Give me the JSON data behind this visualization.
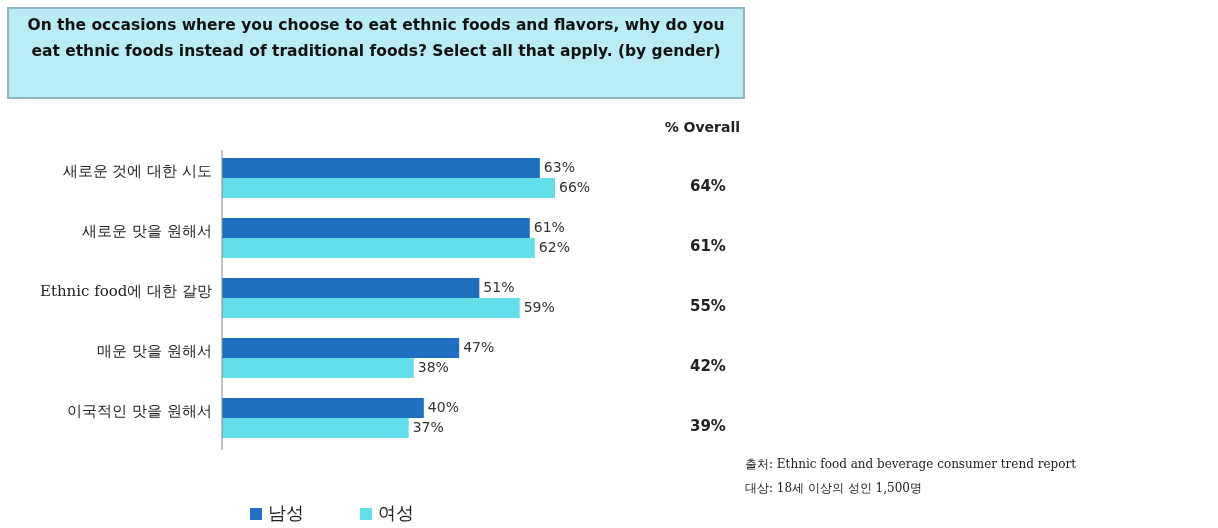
{
  "chart_data": {
    "type": "bar",
    "orientation": "horizontal",
    "title": "On the occasions where you choose to eat ethnic foods and flavors, why do you eat ethnic foods instead of traditional foods? Select all that apply. (by gender)",
    "categories": [
      "새로운 것에 대한 시도",
      "새로운 맛을 원해서",
      "Ethnic food에 대한 갈망",
      "매운 맛을 원해서",
      "이국적인 맛을 원해서"
    ],
    "series": [
      {
        "name": "남성",
        "color": "#1f6fc0",
        "values": [
          63,
          61,
          51,
          47,
          40
        ],
        "value_labels": [
          "63%",
          "61%",
          "51%",
          "47%",
          "40%"
        ]
      },
      {
        "name": "여성",
        "color": "#62dfe8",
        "values": [
          66,
          62,
          59,
          38,
          37
        ],
        "value_labels": [
          "66%",
          "62%",
          "59%",
          "38%",
          "37%"
        ]
      }
    ],
    "legend": "bottom",
    "annotations": [
      "% Overall",
      "64%",
      "61%",
      "55%",
      "42%",
      "39%",
      "출처: Ethnic food and beverage consumer trend report",
      "대상: 18세 이상의 성인 1,500명"
    ]
  }
}
